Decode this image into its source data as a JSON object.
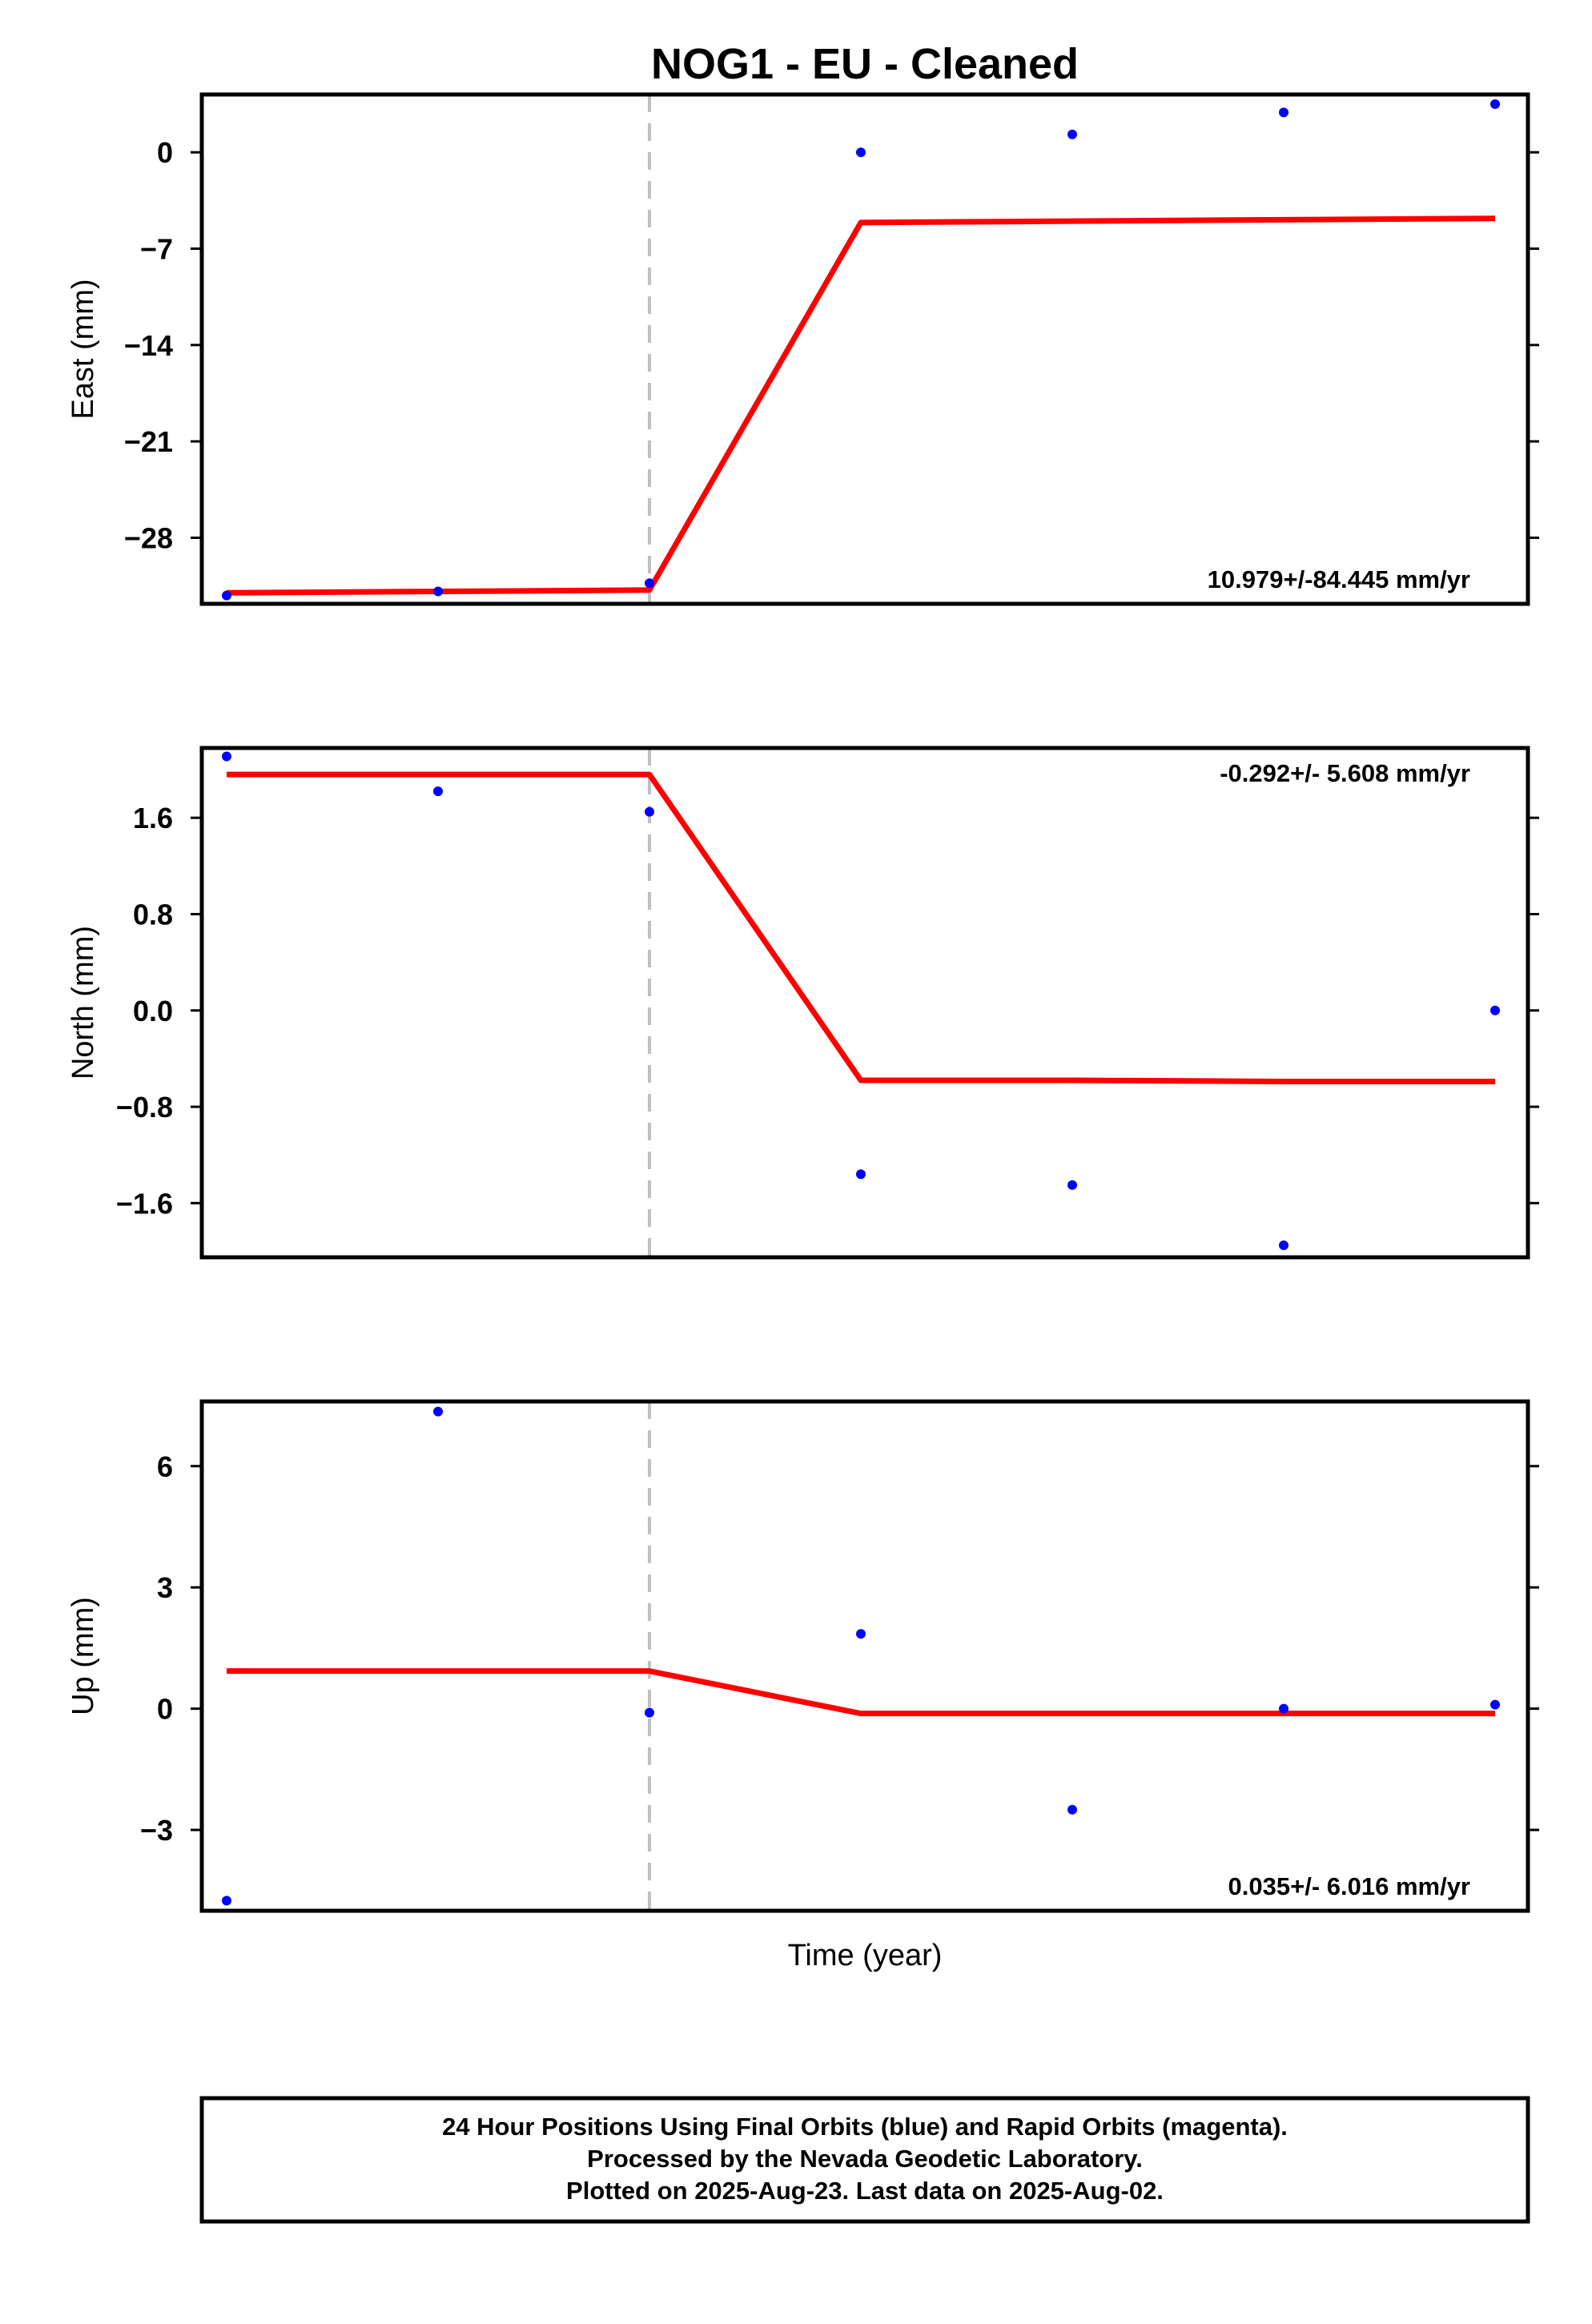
{
  "title": "NOG1  - EU - Cleaned",
  "xlabel": "Time (year)",
  "footer": {
    "line1": "24 Hour Positions Using Final Orbits (blue) and Rapid Orbits (magenta).",
    "line2": "Processed by the Nevada Geodetic Laboratory.",
    "line3": "Plotted on 2025-Aug-23. Last data on 2025-Aug-02."
  },
  "colors": {
    "points": "#0000ff",
    "model": "#ff0000",
    "break_line": "#c0c0c0"
  },
  "chart_data": [
    {
      "type": "scatter",
      "ylabel": "East (mm)",
      "rate_text": "10.979+/-84.445 mm/yr",
      "rate_position": "bottom-right",
      "ylim": [
        -32.8,
        4.2
      ],
      "yticks": [
        0,
        -7,
        -14,
        -21,
        -28
      ],
      "ytick_labels": [
        "0",
        "−7",
        "−14",
        "−21",
        "−28"
      ],
      "x_index": [
        0,
        1,
        2,
        3,
        4,
        5,
        6
      ],
      "points": [
        -32.2,
        -31.9,
        -31.3,
        0.0,
        1.3,
        2.9,
        3.5
      ],
      "model": [
        -32.0,
        -31.9,
        -31.8,
        -5.1,
        -5.0,
        -4.9,
        -4.8
      ],
      "break_x_index": 2,
      "grid": false
    },
    {
      "type": "scatter",
      "ylabel": "North (mm)",
      "rate_text": "-0.292+/- 5.608 mm/yr",
      "rate_position": "top-right",
      "ylim": [
        -2.05,
        2.18
      ],
      "yticks": [
        1.6,
        0.8,
        0.0,
        -0.8,
        -1.6
      ],
      "ytick_labels": [
        "1.6",
        "0.8",
        "0.0",
        "−0.8",
        "−1.6"
      ],
      "x_index": [
        0,
        1,
        2,
        3,
        4,
        5,
        6
      ],
      "points": [
        2.11,
        1.82,
        1.65,
        -1.36,
        -1.45,
        -1.95,
        0.0
      ],
      "model": [
        1.96,
        1.96,
        1.96,
        -0.58,
        -0.58,
        -0.59,
        -0.59
      ],
      "break_x_index": 2,
      "grid": false
    },
    {
      "type": "scatter",
      "ylabel": "Up (mm)",
      "rate_text": "0.035+/- 6.016 mm/yr",
      "rate_position": "bottom-right",
      "ylim": [
        -5.0,
        7.6
      ],
      "yticks": [
        6,
        3,
        0,
        -3
      ],
      "ytick_labels": [
        "6",
        "3",
        "0",
        "−3"
      ],
      "x_index": [
        0,
        1,
        2,
        3,
        4,
        5,
        6
      ],
      "points": [
        -4.75,
        7.35,
        -0.1,
        1.85,
        -2.5,
        0.0,
        0.1
      ],
      "model": [
        0.93,
        0.93,
        0.93,
        -0.12,
        -0.12,
        -0.12,
        -0.12
      ],
      "break_x_index": 2,
      "grid": false
    }
  ]
}
